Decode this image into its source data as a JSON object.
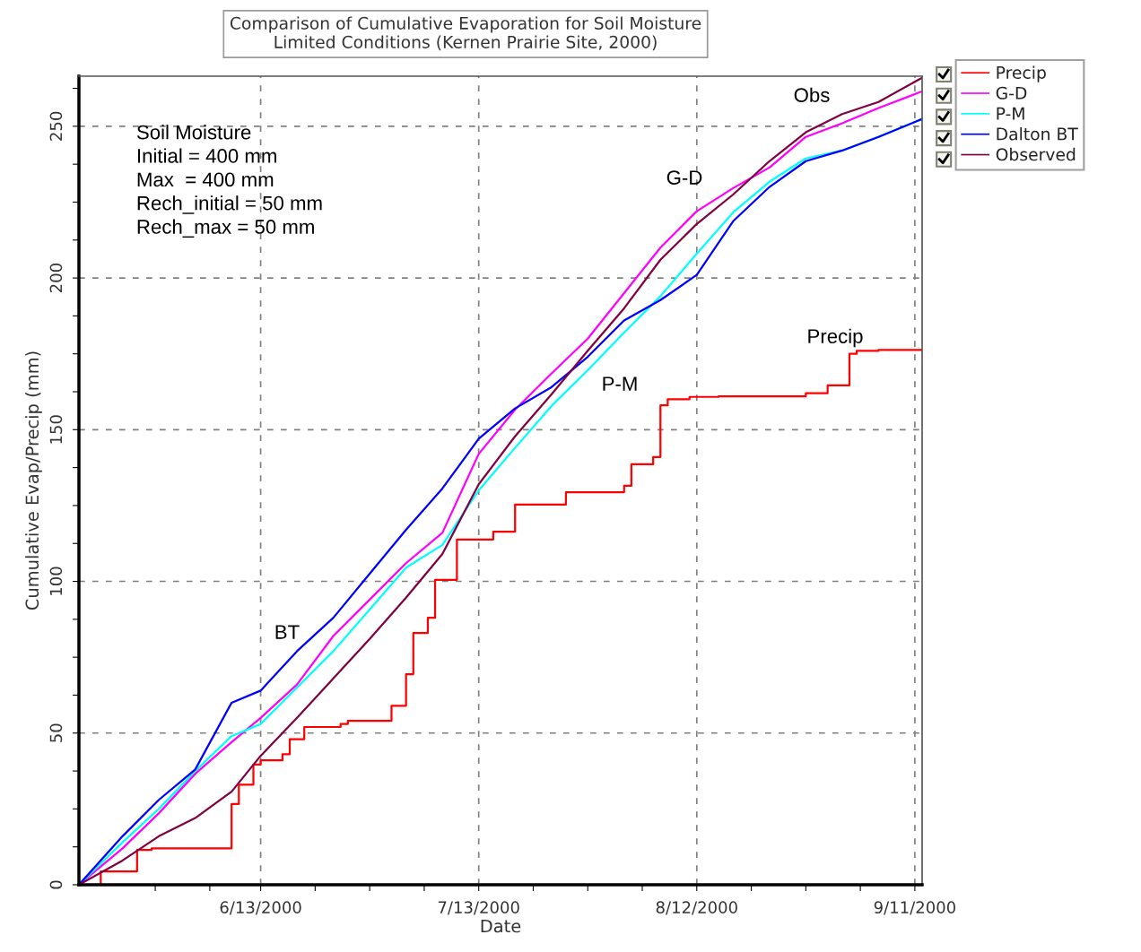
{
  "chart_data": {
    "type": "line",
    "title": "Comparison of Cumulative Evaporation for Soil Moisture\nLimited Conditions (Kernen Prairie Site, 2000)",
    "xlabel": "Date",
    "ylabel": "Cumulative Evap/Precip (mm)",
    "xlim": [
      "2000-05-19",
      "2000-09-12"
    ],
    "ylim": [
      0,
      266.5
    ],
    "xticks": [
      {
        "value": "2000-05-29T12:00",
        "label": null
      },
      {
        "value": "2000-06-06",
        "label": null
      },
      {
        "value": "2000-06-13",
        "label": "6/13/2000"
      },
      {
        "value": "2000-06-20T12:00",
        "label": null
      },
      {
        "value": "2000-06-28",
        "label": null
      },
      {
        "value": "2000-07-05T12:00",
        "label": null
      },
      {
        "value": "2000-07-13",
        "label": "7/13/2000"
      },
      {
        "value": "2000-07-20T12:00",
        "label": null
      },
      {
        "value": "2000-07-28",
        "label": null
      },
      {
        "value": "2000-08-04T12:00",
        "label": null
      },
      {
        "value": "2000-08-12",
        "label": "8/12/2000"
      },
      {
        "value": "2000-08-19T12:00",
        "label": null
      },
      {
        "value": "2000-08-27",
        "label": null
      },
      {
        "value": "2000-09-03T12:00",
        "label": null
      },
      {
        "value": "2000-09-11",
        "label": "9/11/2000"
      }
    ],
    "yticks": [
      0,
      {
        "value": 12.5,
        "label": null
      },
      {
        "value": 25,
        "label": null
      },
      {
        "value": 37.5,
        "label": null
      },
      50,
      {
        "value": 62.5,
        "label": null
      },
      {
        "value": 75,
        "label": null
      },
      {
        "value": 87.5,
        "label": null
      },
      100,
      {
        "value": 112.5,
        "label": null
      },
      {
        "value": 125,
        "label": null
      },
      {
        "value": 137.5,
        "label": null
      },
      150,
      {
        "value": 162.5,
        "label": null
      },
      {
        "value": 175,
        "label": null
      },
      {
        "value": 187.5,
        "label": null
      },
      200,
      {
        "value": 212.5,
        "label": null
      },
      {
        "value": 225,
        "label": null
      },
      {
        "value": 237.5,
        "label": null
      },
      250,
      {
        "value": 262.5,
        "label": null
      }
    ],
    "grid": true,
    "legend": "top right",
    "line_style": "solid",
    "marker": "none",
    "series": [
      {
        "name": "Precip",
        "color": "#ff0000",
        "type": "step",
        "x": [
          "2000-05-19",
          "2000-05-22",
          "2000-05-27",
          "2000-05-29",
          "2000-06-09",
          "2000-06-10",
          "2000-06-12",
          "2000-06-13",
          "2000-06-16",
          "2000-06-17",
          "2000-06-19",
          "2000-06-24",
          "2000-06-25",
          "2000-07-01",
          "2000-07-03",
          "2000-07-04",
          "2000-07-06",
          "2000-07-07",
          "2000-07-10",
          "2000-07-15",
          "2000-07-18",
          "2000-07-25",
          "2000-08-02",
          "2000-08-03",
          "2000-08-06",
          "2000-08-07",
          "2000-08-08",
          "2000-08-11",
          "2000-08-15",
          "2000-08-27",
          "2000-08-30",
          "2000-09-02",
          "2000-09-03",
          "2000-09-06",
          "2000-09-12"
        ],
        "values": [
          0,
          4.4,
          11.5,
          12,
          26.6,
          33,
          39.6,
          41,
          43,
          48,
          52,
          53,
          54,
          59,
          69.4,
          83,
          88,
          100.5,
          113.8,
          116.4,
          125.3,
          129.4,
          131.5,
          138.6,
          141,
          158,
          160,
          160.8,
          161,
          162,
          164.6,
          175,
          176,
          176.3,
          176.3
        ]
      },
      {
        "name": "G-D",
        "color": "#ff00ff",
        "x": [
          "2000-05-19",
          "2000-05-25",
          "2000-05-30",
          "2000-06-04",
          "2000-06-09",
          "2000-06-13",
          "2000-06-18",
          "2000-06-23",
          "2000-06-28",
          "2000-07-03",
          "2000-07-08",
          "2000-07-13",
          "2000-07-18",
          "2000-07-23",
          "2000-07-28",
          "2000-08-02",
          "2000-08-07",
          "2000-08-12",
          "2000-08-17",
          "2000-08-22",
          "2000-08-27",
          "2000-09-01",
          "2000-09-06",
          "2000-09-12"
        ],
        "values": [
          0,
          12,
          23.6,
          36.6,
          47,
          55,
          66,
          82,
          94,
          106,
          116,
          142,
          156.6,
          168.5,
          180,
          195,
          210,
          222,
          229.6,
          236.4,
          246.5,
          251,
          256,
          261.5
        ]
      },
      {
        "name": "P-M",
        "color": "#00ffff",
        "x": [
          "2000-05-19",
          "2000-05-25",
          "2000-05-30",
          "2000-06-04",
          "2000-06-09",
          "2000-06-13",
          "2000-06-18",
          "2000-06-23",
          "2000-06-28",
          "2000-07-03",
          "2000-07-08",
          "2000-07-13",
          "2000-07-18",
          "2000-07-23",
          "2000-07-28",
          "2000-08-02",
          "2000-08-07",
          "2000-08-12",
          "2000-08-17",
          "2000-08-22",
          "2000-08-27",
          "2000-09-01",
          "2000-09-06",
          "2000-09-12"
        ],
        "values": [
          0,
          14,
          25,
          37.5,
          49,
          53,
          65,
          77,
          90.7,
          104.5,
          112,
          130,
          144,
          157.8,
          169.6,
          182,
          194,
          208,
          221.6,
          231.7,
          239.4,
          242,
          246.5,
          252.4
        ]
      },
      {
        "name": "Dalton BT",
        "color": "#0000ff",
        "x": [
          "2000-05-19",
          "2000-05-25",
          "2000-05-30",
          "2000-06-04",
          "2000-06-09",
          "2000-06-13",
          "2000-06-18",
          "2000-06-23",
          "2000-06-28",
          "2000-07-03",
          "2000-07-08",
          "2000-07-13",
          "2000-07-18",
          "2000-07-23",
          "2000-07-28",
          "2000-08-02",
          "2000-08-07",
          "2000-08-12",
          "2000-08-17",
          "2000-08-22",
          "2000-08-27",
          "2000-09-01",
          "2000-09-06",
          "2000-09-12"
        ],
        "values": [
          0,
          16,
          28,
          38,
          60,
          64,
          77,
          88,
          102.5,
          117,
          130.6,
          147,
          157,
          164,
          174,
          186,
          192.7,
          201,
          218.7,
          230,
          238.5,
          242,
          246.5,
          252.4
        ]
      },
      {
        "name": "Observed",
        "color": "#800040",
        "x": [
          "2000-05-19",
          "2000-05-25",
          "2000-05-30",
          "2000-06-04",
          "2000-06-09",
          "2000-06-13",
          "2000-06-18",
          "2000-06-23",
          "2000-06-28",
          "2000-07-03",
          "2000-07-08",
          "2000-07-13",
          "2000-07-18",
          "2000-07-23",
          "2000-07-28",
          "2000-08-02",
          "2000-08-07",
          "2000-08-12",
          "2000-08-17",
          "2000-08-22",
          "2000-08-27",
          "2000-09-01",
          "2000-09-06",
          "2000-09-12"
        ],
        "values": [
          0,
          8,
          16,
          22,
          30.7,
          42.5,
          55,
          68,
          81,
          94.6,
          109,
          132,
          147.8,
          161.6,
          176,
          190,
          206,
          217.8,
          227.5,
          238.5,
          248,
          254,
          258,
          266
        ]
      }
    ],
    "annotations": [
      "Soil Moisture\nInitial = 400 mm\nMax  = 400 mm\nRech_initial = 50 mm\nRech_max = 50 mm",
      "Obs",
      "G-D",
      "P-M",
      "BT",
      "Precip"
    ]
  }
}
